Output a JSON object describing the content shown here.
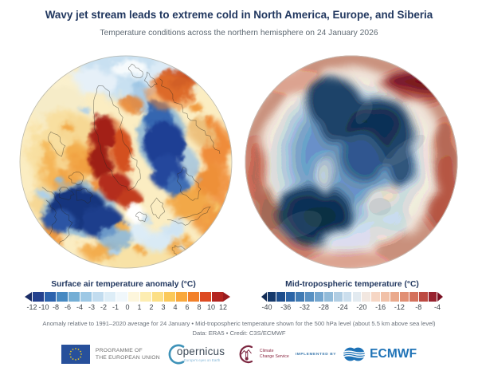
{
  "header": {
    "title": "Wavy jet stream leads to extreme cold in North America, Europe, and Siberia",
    "subtitle": "Temperature conditions across the northern hemisphere on 24 January 2026"
  },
  "maps": {
    "left": {
      "name": "surface-air-temperature-anomaly-map"
    },
    "right": {
      "name": "mid-tropospheric-temperature-map"
    }
  },
  "colorbars": {
    "left": {
      "title": "Surface air temperature anomaly (°C)",
      "ticks": [
        "-12",
        "-10",
        "-8",
        "-6",
        "-4",
        "-3",
        "-2",
        "-1",
        "0",
        "1",
        "2",
        "3",
        "4",
        "6",
        "8",
        "10",
        "12"
      ],
      "segments": [
        "#24418e",
        "#2b62ad",
        "#4689c2",
        "#74aed5",
        "#9dc8e5",
        "#c2dcef",
        "#ddedf7",
        "#f0f7fb",
        "#fdf6dc",
        "#fdedb2",
        "#fcdf85",
        "#fbc95a",
        "#f9a83c",
        "#f2802a",
        "#dd4a22",
        "#b42520"
      ],
      "arrow_left": "#1b2d66",
      "arrow_right": "#9a1b1e"
    },
    "right": {
      "title": "Mid-tropospheric temperature (°C)",
      "ticks": [
        "-40",
        "-36",
        "-32",
        "-28",
        "-24",
        "-20",
        "-16",
        "-12",
        "-8",
        "-4"
      ],
      "segments": [
        "#16396b",
        "#1d4d8c",
        "#2b64a6",
        "#407ab3",
        "#5890c2",
        "#74a6cf",
        "#92bbd9",
        "#b0cde3",
        "#cbdeed",
        "#e2eaf0",
        "#f2e7e0",
        "#f6d6c4",
        "#f1c1a8",
        "#eaa98c",
        "#e18f74",
        "#d4715c",
        "#bc4a42",
        "#97222e"
      ],
      "arrow_left": "#122c56",
      "arrow_right": "#7a1022"
    }
  },
  "footnotes": {
    "line1": "Anomaly relative to 1991–2020 average for 24 January • Mid-tropospheric temperature shown for the 500 hPa level (about 5.5 km above sea level)",
    "line2": "Data: ERA5 • Credit: C3S/ECMWF"
  },
  "footer": {
    "eu_label_line1": "PROGRAMME OF",
    "eu_label_line2": "THE EUROPEAN UNION",
    "copernicus_name": "opernicus",
    "copernicus_tagline": "Europe's eyes on Earth",
    "c3s_label_line1": "Climate",
    "c3s_label_line2": "Change Service",
    "implemented_by": "IMPLEMENTED BY",
    "ecmwf_name": "ECMWF"
  },
  "colors": {
    "title_navy": "#21375f",
    "subtitle_gray": "#5f6a74",
    "footnote_gray": "#6b727b",
    "tick_gray": "#3f464d",
    "warm_core": "#b1271b",
    "cold_core": "#16357e",
    "ecmwf_blue": "#1f73b7",
    "c3s_maroon": "#8b2741",
    "eu_blue": "#27509b",
    "eu_star_yellow": "#ffd617"
  }
}
